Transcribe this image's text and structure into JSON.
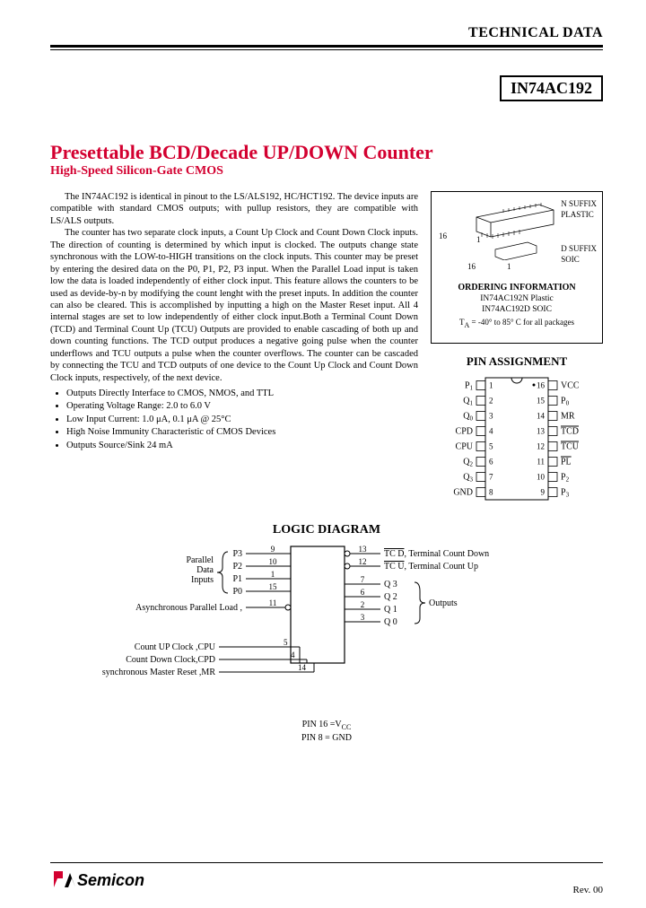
{
  "header": {
    "right": "TECHNICAL DATA"
  },
  "part_number": "IN74AC192",
  "title": "Presettable BCD/Decade UP/DOWN Counter",
  "subtitle": "High-Speed Silicon-Gate CMOS",
  "colors": {
    "heading": "#d30030",
    "logo_red": "#d30030",
    "text": "#000000"
  },
  "body": {
    "para1": "The IN74AC192 is identical in pinout to the LS/ALS192, HC/HCT192. The device inputs are compatible with standard CMOS outputs; with pullup resistors, they are compatible with LS/ALS outputs.",
    "para2": "The counter has two separate clock inputs, a Count Up Clock and Count Down Clock inputs. The direction of counting is determined by which input is clocked. The outputs change state synchronous with the LOW-to-HIGH transitions on the clock inputs. This counter may be preset by entering the desired data on the P0, P1, P2, P3 input. When the Parallel Load input is taken low the data is loaded independently of either clock input. This feature allows the counters to be used as devide-by-n by modifying the count lenght with the preset inputs. In addition the counter can also be cleared. This is accomplished by inputting a high on the Master Reset input. All 4 internal stages are set to low independently of either clock input.Both a Terminal Count Down (TCD) and Terminal Count Up (TCU) Outputs are provided to enable cascading of both up and down counting functions. The TCD output produces a negative going pulse when the counter underflows and TCU outputs a pulse when the counter overflows. The counter can be cascaded by connecting the TCU and TCD outputs of one device to the Count Up Clock and Count Down Clock inputs, respectively, of the next device."
  },
  "bullets": [
    "Outputs Directly Interface to CMOS, NMOS, and TTL",
    "Operating Voltage Range: 2.0 to 6.0 V",
    "Low Input Current: 1.0 μA, 0.1 μA @ 25°C",
    "High Noise Immunity Characteristic of CMOS Devices",
    "Outputs Source/Sink 24 mA"
  ],
  "package_box": {
    "dip_label": "N SUFFIX\nPLASTIC",
    "soic_label": "D SUFFIX\nSOIC",
    "pin16": "16",
    "pin1": "1",
    "ordering_title": "ORDERING INFORMATION",
    "ordering_lines": [
      "IN74AC192N Plastic",
      "IN74AC192D SOIC"
    ],
    "temp": "TA = -40° to 85° C for all packages"
  },
  "pin_assignment": {
    "title": "PIN ASSIGNMENT",
    "left": [
      "P1",
      "Q1",
      "Q0",
      "CPD",
      "CPU",
      "Q2",
      "Q3",
      "GND"
    ],
    "right": [
      "VCC",
      "P0",
      "MR",
      "TCD",
      "TCU",
      "PL",
      "P2",
      "P3"
    ],
    "left_nums": [
      "1",
      "2",
      "3",
      "4",
      "5",
      "6",
      "7",
      "8"
    ],
    "right_nums": [
      "16",
      "15",
      "14",
      "13",
      "12",
      "11",
      "10",
      "9"
    ],
    "overline_right": [
      false,
      false,
      false,
      true,
      true,
      true,
      false,
      false
    ]
  },
  "logic": {
    "title": "LOGIC DIAGRAM",
    "inputs_label": "Parallel\nData\nInputs",
    "left_pins": [
      {
        "name": "P3",
        "num": "9"
      },
      {
        "name": "P2",
        "num": "10"
      },
      {
        "name": "P1",
        "num": "1"
      },
      {
        "name": "P0",
        "num": "15"
      }
    ],
    "pl": {
      "name": "Asynchronous Parallel Load ,PL",
      "num": "11"
    },
    "cpu": {
      "name": "Count UP Clock ,CPU",
      "num": "5"
    },
    "cpd": {
      "name": "Count Down Clock,CPD",
      "num": "4"
    },
    "mr": {
      "name": "Asynchronous Master Reset ,MR",
      "num": "14"
    },
    "right_pins": [
      {
        "name": "TC D, Terminal Count Down",
        "num": "13",
        "ovl": true
      },
      {
        "name": "TC U, Terminal Count Up",
        "num": "12",
        "ovl": true
      },
      {
        "name": "Q 3",
        "num": "7"
      },
      {
        "name": "Q 2",
        "num": "6"
      },
      {
        "name": "Q 1",
        "num": "2"
      },
      {
        "name": "Q 0",
        "num": "3"
      }
    ],
    "outputs_label": "Outputs",
    "pin_notes": [
      "PIN 16 = VCC",
      "PIN 8 = GND"
    ]
  },
  "footer": {
    "company": "Semicon",
    "rev": "Rev. 00"
  }
}
